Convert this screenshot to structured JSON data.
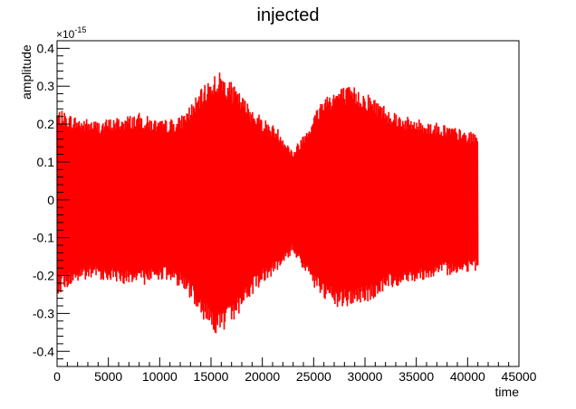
{
  "chart_data": {
    "type": "line",
    "title": "injected",
    "xlabel": "time",
    "ylabel": "amplitude",
    "y_exponent_label": "×10",
    "y_exponent_power": "-15",
    "xlim": [
      0,
      45000
    ],
    "ylim": [
      -0.44,
      0.42
    ],
    "x_ticks": [
      0,
      5000,
      10000,
      15000,
      20000,
      25000,
      30000,
      35000,
      40000,
      45000
    ],
    "x_tick_labels": [
      "0",
      "5000",
      "10000",
      "15000",
      "20000",
      "25000",
      "30000",
      "35000",
      "40000",
      "45000"
    ],
    "y_ticks": [
      -0.4,
      -0.3,
      -0.2,
      -0.1,
      0,
      0.1,
      0.2,
      0.3,
      0.4
    ],
    "y_tick_labels": [
      "-0.4",
      "-0.3",
      "-0.2",
      "-0.1",
      "0",
      "0.1",
      "0.2",
      "0.3",
      "0.4"
    ],
    "grid": false,
    "series": [
      {
        "color": "#ff0000",
        "envelope": {
          "x": [
            0,
            2000,
            4000,
            6000,
            8000,
            10000,
            12000,
            13500,
            15000,
            16000,
            17000,
            18500,
            20000,
            21500,
            23000,
            24500,
            26000,
            27500,
            29000,
            30500,
            32000,
            34000,
            36000,
            38000,
            40000,
            41000
          ],
          "upper": [
            0.24,
            0.22,
            0.21,
            0.22,
            0.23,
            0.21,
            0.22,
            0.27,
            0.33,
            0.34,
            0.31,
            0.26,
            0.22,
            0.19,
            0.13,
            0.2,
            0.28,
            0.3,
            0.3,
            0.28,
            0.25,
            0.22,
            0.21,
            0.2,
            0.18,
            0.18
          ],
          "lower": [
            -0.25,
            -0.22,
            -0.21,
            -0.22,
            -0.23,
            -0.21,
            -0.23,
            -0.28,
            -0.35,
            -0.36,
            -0.33,
            -0.27,
            -0.22,
            -0.19,
            -0.14,
            -0.21,
            -0.27,
            -0.29,
            -0.28,
            -0.27,
            -0.24,
            -0.22,
            -0.21,
            -0.2,
            -0.19,
            -0.19
          ]
        }
      }
    ]
  }
}
